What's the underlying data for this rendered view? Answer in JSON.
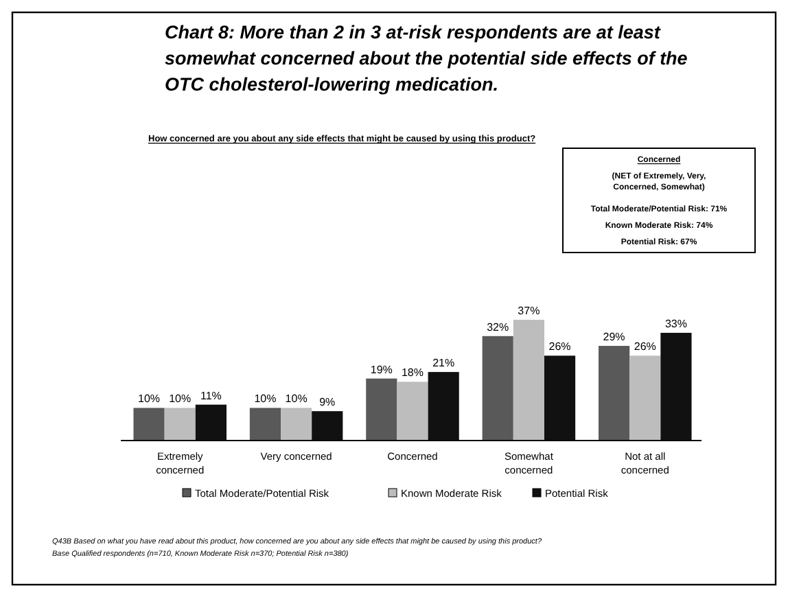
{
  "chart_data": {
    "type": "bar",
    "title": "Chart 8: More than 2 in 3 at-risk respondents are at least somewhat concerned about the potential side effects of the OTC cholesterol-lowering medication.",
    "subtitle": "How concerned are you about any side effects that might be caused by using this product?",
    "categories": [
      "Extremely concerned",
      "Very concerned",
      "Concerned",
      "Somewhat concerned",
      "Not at all concerned"
    ],
    "series": [
      {
        "name": "Total Moderate/Potential Risk",
        "color": "#595959",
        "values": [
          10,
          10,
          19,
          32,
          29
        ],
        "value_labels": [
          "10%",
          "10%",
          "19%",
          "32%",
          "29%"
        ]
      },
      {
        "name": "Known Moderate Risk",
        "color": "#bdbdbd",
        "values": [
          10,
          10,
          18,
          37,
          26
        ],
        "value_labels": [
          "10%",
          "10%",
          "18%",
          "37%",
          "26%"
        ]
      },
      {
        "name": "Potential Risk",
        "color": "#111111",
        "values": [
          11,
          9,
          21,
          26,
          33
        ],
        "value_labels": [
          "11%",
          "9%",
          "21%",
          "26%",
          "33%"
        ]
      }
    ],
    "legend": "bottom",
    "annotations": [
      "Concerned",
      "(NET of Extremely, Very, Concerned, Somewhat)",
      "Total Moderate/Potential Risk: 71%",
      "Known Moderate Risk: 74%",
      "Potential Risk: 67%",
      "Q43B   Based on what you have read about this product, how concerned are you about any side effects that might be caused by using this product?",
      "Base   Qualified respondents (n=710, Known Moderate Risk n=370; Potential Risk n=380)"
    ]
  }
}
